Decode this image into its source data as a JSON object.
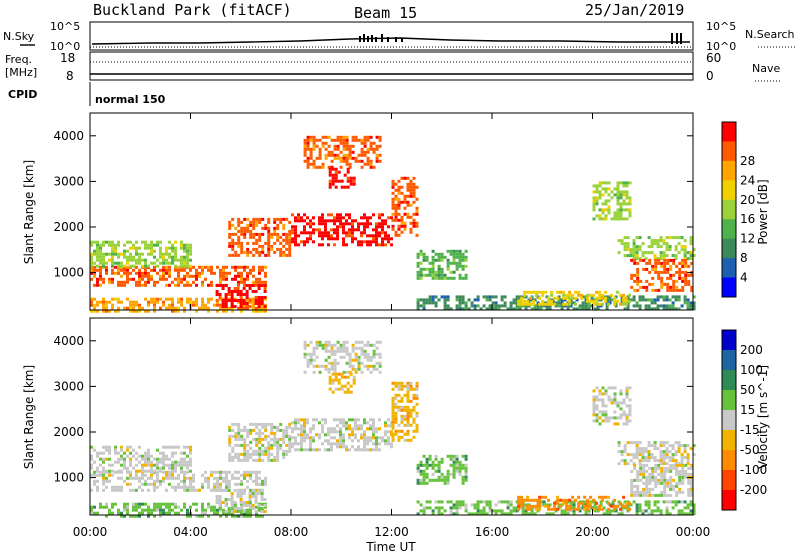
{
  "header": {
    "site": "Buckland Park (fitACF)",
    "beam": "Beam 15",
    "date": "25/Jan/2019"
  },
  "top_panels": {
    "nsky_label": "N.Sky",
    "nsearch_label": "N.Search",
    "noise_ticks": [
      "10^5",
      "10^0"
    ],
    "freq_label": "Freq.",
    "freq_unit": "[MHz]",
    "freq_ticks": [
      "18",
      "8"
    ],
    "nave_label": "Nave",
    "nave_ticks": [
      "60",
      "0"
    ],
    "cpid_label": "CPID",
    "cpid_value": "normal 150"
  },
  "colors": {
    "power": [
      "#0000ff",
      "#1f5fb0",
      "#3c8a5a",
      "#4fb24a",
      "#9ad23a",
      "#f0d000",
      "#ffa500",
      "#ff5a00",
      "#ff0000"
    ],
    "velocity": [
      "#ff0000",
      "#ff4500",
      "#ff8c00",
      "#f0b400",
      "#c8c8c8",
      "#66c23a",
      "#2e8b57",
      "#1e64a0",
      "#0000cd"
    ]
  },
  "chart_data": [
    {
      "type": "heatmap",
      "name": "power",
      "xlabel": "",
      "ylabel": "Slant Range [km]",
      "x_ticks": [
        "00:00",
        "04:00",
        "08:00",
        "12:00",
        "16:00",
        "20:00",
        "00:00"
      ],
      "xlim_hours": [
        0,
        24
      ],
      "y_ticks": [
        1000,
        2000,
        3000,
        4000
      ],
      "ylim_km": [
        180,
        4500
      ],
      "colorbar": {
        "label": "Power [dB]",
        "ticks": [
          "4",
          "8",
          "12",
          "16",
          "20",
          "24",
          "28"
        ],
        "range": [
          0,
          30
        ]
      },
      "regions": [
        {
          "t0": 0.0,
          "t1": 7.0,
          "r0": 750,
          "r1": 1150,
          "level": 7
        },
        {
          "t0": 0.0,
          "t1": 7.0,
          "r0": 180,
          "r1": 450,
          "level": 6
        },
        {
          "t0": 0.0,
          "t1": 4.0,
          "r0": 1150,
          "r1": 1700,
          "level": 4
        },
        {
          "t0": 5.0,
          "t1": 7.0,
          "r0": 250,
          "r1": 750,
          "level": 8
        },
        {
          "t0": 5.5,
          "t1": 8.0,
          "r0": 1400,
          "r1": 2200,
          "level": 7
        },
        {
          "t0": 8.0,
          "t1": 12.0,
          "r0": 1600,
          "r1": 2300,
          "level": 8
        },
        {
          "t0": 12.0,
          "t1": 13.0,
          "r0": 1800,
          "r1": 3100,
          "level": 7
        },
        {
          "t0": 8.5,
          "t1": 11.5,
          "r0": 3300,
          "r1": 4000,
          "level": 7
        },
        {
          "t0": 9.5,
          "t1": 10.5,
          "r0": 2900,
          "r1": 3300,
          "level": 8
        },
        {
          "t0": 13.0,
          "t1": 15.0,
          "r0": 900,
          "r1": 1500,
          "level": 3
        },
        {
          "t0": 13.0,
          "t1": 24.0,
          "r0": 180,
          "r1": 500,
          "level": 2
        },
        {
          "t0": 17.0,
          "t1": 21.5,
          "r0": 300,
          "r1": 600,
          "level": 5
        },
        {
          "t0": 20.0,
          "t1": 21.5,
          "r0": 2200,
          "r1": 3000,
          "level": 4
        },
        {
          "t0": 21.0,
          "t1": 24.0,
          "r0": 1300,
          "r1": 1800,
          "level": 4
        },
        {
          "t0": 21.5,
          "t1": 24.0,
          "r0": 600,
          "r1": 1300,
          "level": 7
        }
      ]
    },
    {
      "type": "heatmap",
      "name": "velocity",
      "xlabel": "Time UT",
      "ylabel": "Slant Range [km]",
      "x_ticks": [
        "00:00",
        "04:00",
        "08:00",
        "12:00",
        "16:00",
        "20:00",
        "00:00"
      ],
      "xlim_hours": [
        0,
        24
      ],
      "y_ticks": [
        1000,
        2000,
        3000,
        4000
      ],
      "ylim_km": [
        180,
        4500
      ],
      "colorbar": {
        "label": "Velocity [m s^-1]",
        "ticks": [
          "200",
          "100",
          "50",
          "15",
          "-15",
          "-50",
          "-100",
          "-200"
        ],
        "range": [
          -250,
          250
        ]
      },
      "regions": [
        {
          "t0": 0.0,
          "t1": 7.0,
          "r0": 750,
          "r1": 1150,
          "level": 4
        },
        {
          "t0": 0.0,
          "t1": 7.0,
          "r0": 180,
          "r1": 450,
          "level": 5
        },
        {
          "t0": 0.0,
          "t1": 4.0,
          "r0": 1150,
          "r1": 1700,
          "level": 4
        },
        {
          "t0": 5.0,
          "t1": 7.0,
          "r0": 250,
          "r1": 750,
          "level": 4
        },
        {
          "t0": 5.5,
          "t1": 8.0,
          "r0": 1400,
          "r1": 2200,
          "level": 4
        },
        {
          "t0": 8.0,
          "t1": 12.0,
          "r0": 1600,
          "r1": 2300,
          "level": 4
        },
        {
          "t0": 12.0,
          "t1": 13.0,
          "r0": 1800,
          "r1": 3100,
          "level": 3
        },
        {
          "t0": 8.5,
          "t1": 11.5,
          "r0": 3300,
          "r1": 4000,
          "level": 4
        },
        {
          "t0": 9.5,
          "t1": 10.5,
          "r0": 2900,
          "r1": 3300,
          "level": 3
        },
        {
          "t0": 13.0,
          "t1": 15.0,
          "r0": 900,
          "r1": 1500,
          "level": 5
        },
        {
          "t0": 13.0,
          "t1": 24.0,
          "r0": 180,
          "r1": 500,
          "level": 5
        },
        {
          "t0": 17.0,
          "t1": 21.5,
          "r0": 300,
          "r1": 600,
          "level": 2
        },
        {
          "t0": 20.0,
          "t1": 21.5,
          "r0": 2200,
          "r1": 3000,
          "level": 4
        },
        {
          "t0": 21.0,
          "t1": 24.0,
          "r0": 1300,
          "r1": 1800,
          "level": 4
        },
        {
          "t0": 21.5,
          "t1": 24.0,
          "r0": 600,
          "r1": 1300,
          "level": 4
        }
      ]
    }
  ]
}
